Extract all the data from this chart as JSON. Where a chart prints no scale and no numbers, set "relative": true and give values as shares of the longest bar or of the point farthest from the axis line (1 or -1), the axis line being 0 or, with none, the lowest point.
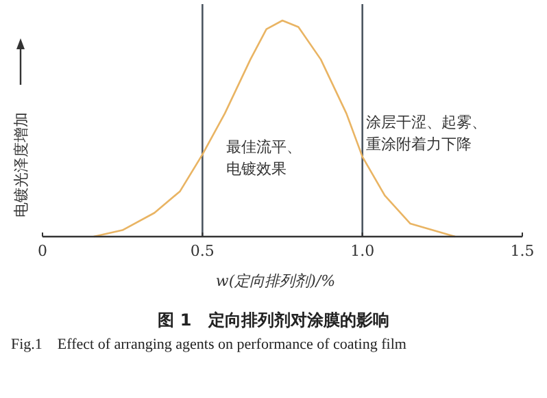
{
  "chart_data": {
    "type": "line",
    "relative": true,
    "title": "图 1　定向排列剂对涂膜的影响",
    "subtitle": "Fig.1　Effect of arranging agents on performance of coating film",
    "xlabel": "w(定向排列剂)/%",
    "ylabel": "电镀光泽度增加",
    "x": [
      0.16,
      0.25,
      0.35,
      0.43,
      0.5,
      0.57,
      0.65,
      0.7,
      0.75,
      0.8,
      0.87,
      0.95,
      1.0,
      1.07,
      1.15,
      1.29
    ],
    "values": [
      0,
      0.03,
      0.11,
      0.21,
      0.38,
      0.57,
      0.82,
      0.96,
      1,
      0.97,
      0.82,
      0.57,
      0.37,
      0.19,
      0.06,
      0
    ],
    "color": "#e9b463",
    "xlim": [
      0,
      1.5
    ],
    "xticks": [
      0,
      0.5,
      {
        "value": 1.0,
        "label": "1.0"
      },
      1.5
    ],
    "ref_lines": [
      {
        "axis": "x",
        "value": 0.5,
        "color": "#4b5560"
      },
      {
        "axis": "x",
        "value": 1.0,
        "color": "#4b5560"
      }
    ],
    "annotations": [
      "最佳流平、电镀效果",
      "涂层干涩、起雾、重涂附着力下降"
    ],
    "grid": false,
    "marker": "none",
    "line_style": "solid"
  }
}
